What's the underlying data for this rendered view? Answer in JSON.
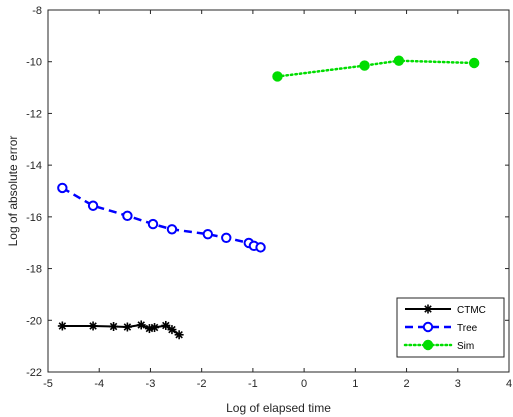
{
  "chart_data": {
    "type": "line",
    "xlabel": "Log of elapsed time",
    "ylabel": "Log of absolute error",
    "xlim": [
      -5,
      4
    ],
    "ylim": [
      -22,
      -8
    ],
    "xticks": [
      -5,
      -4,
      -3,
      -2,
      -1,
      0,
      1,
      2,
      3,
      4
    ],
    "yticks": [
      -22,
      -20,
      -18,
      -16,
      -14,
      -12,
      -10,
      -8
    ],
    "grid": false,
    "legend_position": "bottom-right",
    "series": [
      {
        "name": "CTMC",
        "color": "#000000",
        "line_style": "solid",
        "marker": "star",
        "x": [
          -4.72,
          -4.12,
          -3.72,
          -3.45,
          -3.18,
          -3.02,
          -2.92,
          -2.7,
          -2.58,
          -2.44
        ],
        "y": [
          -20.22,
          -20.22,
          -20.24,
          -20.26,
          -20.18,
          -20.32,
          -20.28,
          -20.2,
          -20.36,
          -20.56
        ]
      },
      {
        "name": "Tree",
        "color": "#0000ff",
        "line_style": "dashed",
        "marker": "circle",
        "x": [
          -4.72,
          -4.12,
          -3.45,
          -2.95,
          -2.58,
          -1.88,
          -1.52,
          -1.08,
          -0.98,
          -0.85
        ],
        "y": [
          -14.88,
          -15.57,
          -15.96,
          -16.28,
          -16.48,
          -16.67,
          -16.81,
          -17.01,
          -17.12,
          -17.18
        ]
      },
      {
        "name": "Sim",
        "color": "#00dd00",
        "line_style": "dotted",
        "marker": "circle",
        "x": [
          -0.52,
          1.18,
          1.85,
          3.32
        ],
        "y": [
          -10.57,
          -10.15,
          -9.96,
          -10.05
        ]
      }
    ]
  }
}
